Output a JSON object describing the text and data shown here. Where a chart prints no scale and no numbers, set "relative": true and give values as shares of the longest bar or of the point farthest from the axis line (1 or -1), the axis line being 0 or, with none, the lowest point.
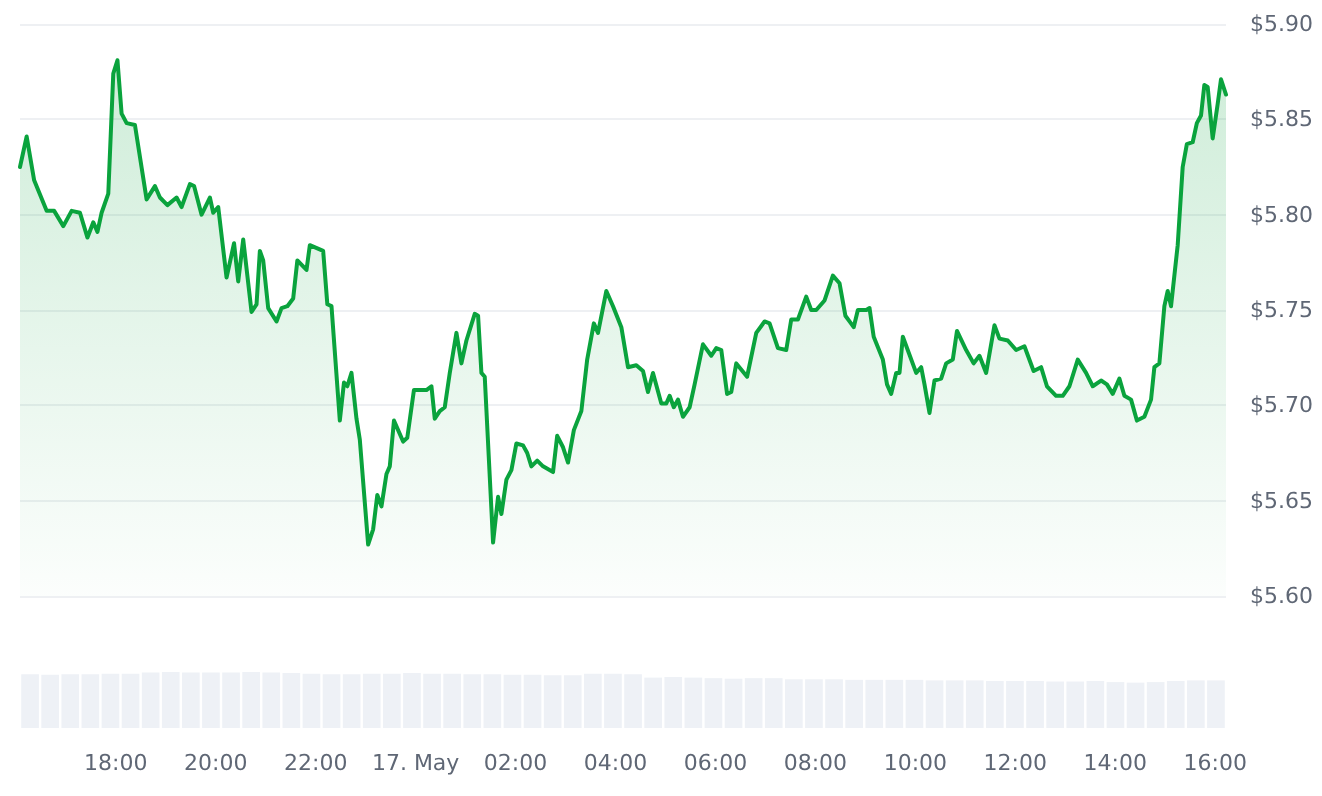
{
  "chart_data": [
    {
      "type": "area",
      "color": "#0aa33d",
      "grid": "y",
      "marker": "none",
      "xlim": [
        "--05-16T16:05",
        "--05-17T16:13"
      ],
      "ylim": [
        5.6,
        5.9
      ],
      "xticks": [
        {
          "value": "--05-16T18:00",
          "label": "18:00"
        },
        {
          "value": "--05-16T20:00",
          "label": "20:00"
        },
        {
          "value": "--05-16T22:00",
          "label": "22:00"
        },
        {
          "value": "--05-17T00:00",
          "label": "17. May"
        },
        {
          "value": "--05-17T02:00",
          "label": "02:00"
        },
        {
          "value": "--05-17T04:00",
          "label": "04:00"
        },
        {
          "value": "--05-17T06:00",
          "label": "06:00"
        },
        {
          "value": "--05-17T08:00",
          "label": "08:00"
        },
        {
          "value": "--05-17T10:00",
          "label": "10:00"
        },
        {
          "value": "--05-17T12:00",
          "label": "12:00"
        },
        {
          "value": "--05-17T14:00",
          "label": "14:00"
        },
        {
          "value": "--05-17T16:00",
          "label": "16:00"
        }
      ],
      "yticks": [
        {
          "value": 5.6,
          "label": "$5.60"
        },
        {
          "value": 5.65,
          "label": "$5.65"
        },
        {
          "value": 5.7,
          "label": "$5.70"
        },
        {
          "value": 5.75,
          "label": "$5.75"
        },
        {
          "value": 5.8,
          "label": "$5.80"
        },
        {
          "value": 5.85,
          "label": "$5.85"
        },
        {
          "value": 5.9,
          "label": "$5.90"
        }
      ],
      "x": [
        "--05-16T16:05",
        "--05-16T16:13",
        "--05-16T16:22",
        "--05-16T16:37",
        "--05-16T16:46",
        "--05-16T16:57",
        "--05-16T17:07",
        "--05-16T17:17",
        "--05-16T17:26",
        "--05-16T17:33",
        "--05-16T17:38",
        "--05-16T17:43",
        "--05-16T17:51",
        "--05-16T17:57",
        "--05-16T18:02",
        "--05-16T18:07",
        "--05-16T18:13",
        "--05-16T18:23",
        "--05-16T18:37",
        "--05-16T18:47",
        "--05-16T18:53",
        "--05-16T19:02",
        "--05-16T19:13",
        "--05-16T19:19",
        "--05-16T19:29",
        "--05-16T19:34",
        "--05-16T19:43",
        "--05-16T19:53",
        "--05-16T19:57",
        "--05-16T20:03",
        "--05-16T20:13",
        "--05-16T20:22",
        "--05-16T20:27",
        "--05-16T20:33",
        "--05-16T20:43",
        "--05-16T20:49",
        "--05-16T20:53",
        "--05-16T20:57",
        "--05-16T21:03",
        "--05-16T21:13",
        "--05-16T21:19",
        "--05-16T21:26",
        "--05-16T21:33",
        "--05-16T21:38",
        "--05-16T21:49",
        "--05-16T21:53",
        "--05-16T22:09",
        "--05-16T22:14",
        "--05-16T22:19",
        "--05-16T22:29",
        "--05-16T22:34",
        "--05-16T22:38",
        "--05-16T22:43",
        "--05-16T22:49",
        "--05-16T22:53",
        "--05-16T23:03",
        "--05-16T23:09",
        "--05-16T23:14",
        "--05-16T23:19",
        "--05-16T23:25",
        "--05-16T23:29",
        "--05-16T23:34",
        "--05-16T23:45",
        "--05-16T23:50",
        "--05-16T23:58",
        "--05-17T00:13",
        "--05-17T00:19",
        "--05-17T00:23",
        "--05-17T00:29",
        "--05-17T00:35",
        "--05-17T00:41",
        "--05-17T00:49",
        "--05-17T00:55",
        "--05-17T01:01",
        "--05-17T01:11",
        "--05-17T01:15",
        "--05-17T01:19",
        "--05-17T01:23",
        "--05-17T01:33",
        "--05-17T01:39",
        "--05-17T01:43",
        "--05-17T01:49",
        "--05-17T01:55",
        "--05-17T02:01",
        "--05-17T02:09",
        "--05-17T02:14",
        "--05-17T02:19",
        "--05-17T02:26",
        "--05-17T02:33",
        "--05-17T02:45",
        "--05-17T02:50",
        "--05-17T02:57",
        "--05-17T03:03",
        "--05-17T03:10",
        "--05-17T03:19",
        "--05-17T03:26",
        "--05-17T03:34",
        "--05-17T03:39",
        "--05-17T03:49",
        "--05-17T03:57",
        "--05-17T04:07",
        "--05-17T04:15",
        "--05-17T04:25",
        "--05-17T04:33",
        "--05-17T04:39",
        "--05-17T04:45",
        "--05-17T04:55",
        "--05-17T05:01",
        "--05-17T05:05",
        "--05-17T05:10",
        "--05-17T05:15",
        "--05-17T05:21",
        "--05-17T05:29",
        "--05-17T05:35",
        "--05-17T05:45",
        "--05-17T05:55",
        "--05-17T06:01",
        "--05-17T06:07",
        "--05-17T06:14",
        "--05-17T06:19",
        "--05-17T06:25",
        "--05-17T06:38",
        "--05-17T06:49",
        "--05-17T06:59",
        "--05-17T07:05",
        "--05-17T07:15",
        "--05-17T07:25",
        "--05-17T07:31",
        "--05-17T07:39",
        "--05-17T07:49",
        "--05-17T07:55",
        "--05-17T08:01",
        "--05-17T08:11",
        "--05-17T08:21",
        "--05-17T08:29",
        "--05-17T08:36",
        "--05-17T08:41",
        "--05-17T08:46",
        "--05-17T08:51",
        "--05-17T09:01",
        "--05-17T09:05",
        "--05-17T09:10",
        "--05-17T09:21",
        "--05-17T09:26",
        "--05-17T09:31",
        "--05-17T09:37",
        "--05-17T09:41",
        "--05-17T09:45",
        "--05-17T10:01",
        "--05-17T10:07",
        "--05-17T10:11",
        "--05-17T10:17",
        "--05-17T10:23",
        "--05-17T10:31",
        "--05-17T10:37",
        "--05-17T10:45",
        "--05-17T10:50",
        "--05-17T11:01",
        "--05-17T11:10",
        "--05-17T11:17",
        "--05-17T11:25",
        "--05-17T11:35",
        "--05-17T11:41",
        "--05-17T11:51",
        "--05-17T12:01",
        "--05-17T12:11",
        "--05-17T12:22",
        "--05-17T12:31",
        "--05-17T12:38",
        "--05-17T12:49",
        "--05-17T12:57",
        "--05-17T13:05",
        "--05-17T13:15",
        "--05-17T13:25",
        "--05-17T13:33",
        "--05-17T13:43",
        "--05-17T13:50",
        "--05-17T13:57",
        "--05-17T14:05",
        "--05-17T14:11",
        "--05-17T14:19",
        "--05-17T14:26",
        "--05-17T14:35",
        "--05-17T14:43",
        "--05-17T14:47",
        "--05-17T14:53",
        "--05-17T14:59",
        "--05-17T15:03",
        "--05-17T15:07",
        "--05-17T15:15",
        "--05-17T15:21",
        "--05-17T15:26",
        "--05-17T15:33",
        "--05-17T15:38",
        "--05-17T15:43",
        "--05-17T15:47",
        "--05-17T15:51",
        "--05-17T15:57",
        "--05-17T16:03",
        "--05-17T16:07",
        "--05-17T16:13"
      ],
      "values": [
        5.825,
        5.841,
        5.818,
        5.802,
        5.802,
        5.794,
        5.802,
        5.801,
        5.788,
        5.796,
        5.791,
        5.801,
        5.811,
        5.874,
        5.881,
        5.853,
        5.848,
        5.847,
        5.808,
        5.815,
        5.809,
        5.805,
        5.809,
        5.804,
        5.816,
        5.815,
        5.8,
        5.809,
        5.801,
        5.804,
        5.767,
        5.785,
        5.765,
        5.787,
        5.749,
        5.753,
        5.781,
        5.776,
        5.751,
        5.744,
        5.751,
        5.752,
        5.756,
        5.776,
        5.771,
        5.784,
        5.781,
        5.753,
        5.752,
        5.692,
        5.712,
        5.71,
        5.717,
        5.693,
        5.682,
        5.627,
        5.635,
        5.653,
        5.647,
        5.664,
        5.668,
        5.692,
        5.681,
        5.683,
        5.708,
        5.708,
        5.71,
        5.693,
        5.697,
        5.699,
        5.717,
        5.738,
        5.722,
        5.734,
        5.748,
        5.747,
        5.717,
        5.715,
        5.628,
        5.652,
        5.643,
        5.661,
        5.666,
        5.68,
        5.679,
        5.675,
        5.668,
        5.671,
        5.668,
        5.665,
        5.684,
        5.678,
        5.67,
        5.687,
        5.697,
        5.724,
        5.743,
        5.738,
        5.76,
        5.752,
        5.741,
        5.72,
        5.721,
        5.718,
        5.707,
        5.717,
        5.701,
        5.701,
        5.705,
        5.699,
        5.703,
        5.694,
        5.699,
        5.711,
        5.732,
        5.726,
        5.73,
        5.729,
        5.706,
        5.707,
        5.722,
        5.715,
        5.738,
        5.744,
        5.743,
        5.73,
        5.729,
        5.745,
        5.745,
        5.757,
        5.75,
        5.75,
        5.755,
        5.768,
        5.764,
        5.747,
        5.744,
        5.741,
        5.75,
        5.75,
        5.751,
        5.736,
        5.724,
        5.711,
        5.706,
        5.717,
        5.717,
        5.736,
        5.717,
        5.72,
        5.711,
        5.696,
        5.713,
        5.714,
        5.722,
        5.724,
        5.739,
        5.729,
        5.722,
        5.726,
        5.717,
        5.742,
        5.735,
        5.734,
        5.729,
        5.731,
        5.718,
        5.72,
        5.71,
        5.705,
        5.705,
        5.71,
        5.724,
        5.717,
        5.71,
        5.713,
        5.711,
        5.706,
        5.714,
        5.705,
        5.703,
        5.692,
        5.694,
        5.703,
        5.72,
        5.722,
        5.752,
        5.76,
        5.752,
        5.784,
        5.825,
        5.837,
        5.838,
        5.848,
        5.852,
        5.868,
        5.867,
        5.84,
        5.858,
        5.871,
        5.863
      ]
    },
    {
      "type": "bar",
      "relative": true,
      "color": "#eef1f6",
      "categories": [
        null,
        null,
        null,
        null,
        null,
        null,
        null,
        null,
        null,
        null,
        null,
        null,
        null,
        null,
        null,
        null,
        null,
        null,
        null,
        null,
        null,
        null,
        null,
        null,
        null,
        null,
        null,
        null,
        null,
        null,
        null,
        null,
        null,
        null,
        null,
        null,
        null,
        null,
        null,
        null,
        null,
        null,
        null,
        null,
        null,
        null,
        null,
        null,
        null,
        null,
        null,
        null,
        null,
        null,
        null,
        null,
        null,
        null,
        null,
        null
      ],
      "values": [
        0.96,
        0.95,
        0.96,
        0.96,
        0.97,
        0.97,
        0.99,
        1,
        0.99,
        0.99,
        0.99,
        1,
        0.99,
        0.98,
        0.97,
        0.96,
        0.96,
        0.97,
        0.97,
        0.98,
        0.97,
        0.97,
        0.96,
        0.96,
        0.95,
        0.95,
        0.94,
        0.94,
        0.97,
        0.97,
        0.96,
        0.9,
        0.91,
        0.9,
        0.89,
        0.88,
        0.89,
        0.89,
        0.87,
        0.87,
        0.87,
        0.86,
        0.86,
        0.86,
        0.86,
        0.85,
        0.85,
        0.85,
        0.84,
        0.84,
        0.84,
        0.83,
        0.83,
        0.84,
        0.82,
        0.81,
        0.82,
        0.84,
        0.85,
        0.85
      ]
    }
  ]
}
